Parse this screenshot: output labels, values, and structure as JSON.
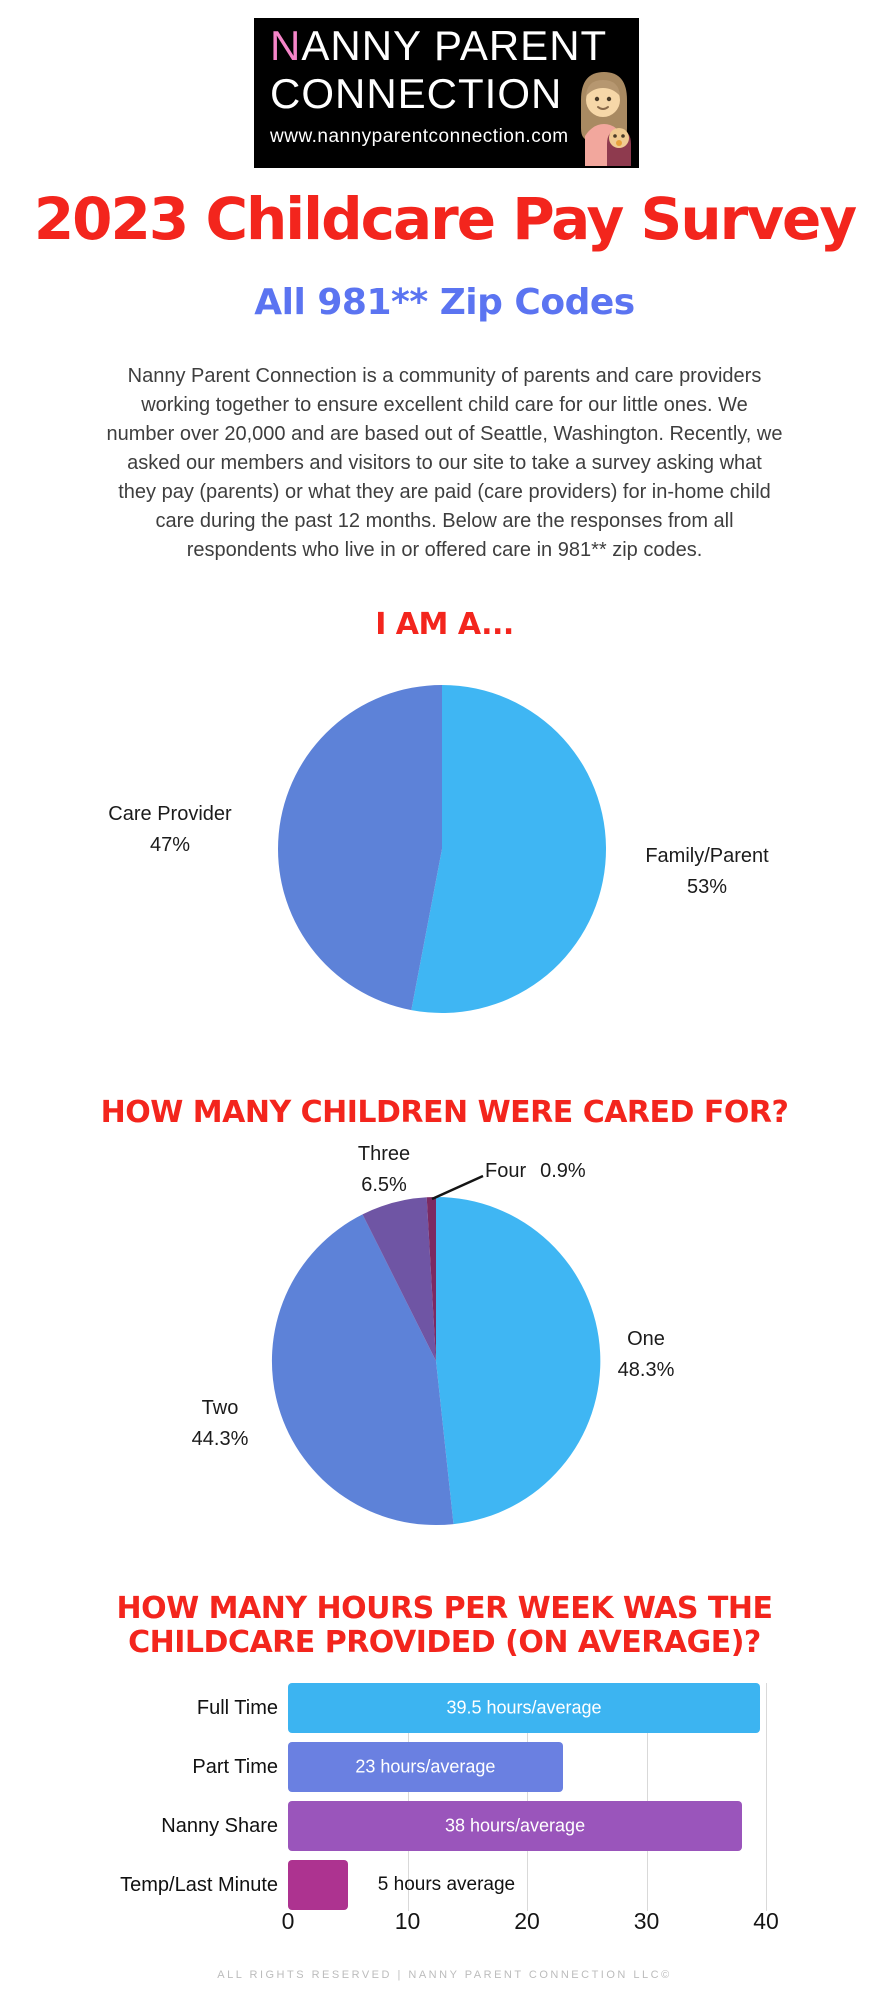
{
  "page": {
    "background": "#ffffff",
    "footer": "ALL RIGHTS RESERVED | NANNY PARENT CONNECTION LLC©"
  },
  "logo": {
    "line1_first_letter": "N",
    "line1_rest": "ANNY PARENT",
    "line2": "CONNECTION",
    "url": "www.nannyparentconnection.com",
    "bg_color": "#000000",
    "pink_accent": "#f585c8",
    "icon": "nanny-holding-baby-icon"
  },
  "header": {
    "title": "2023 Childcare Pay Survey",
    "title_color": "#f3251d",
    "subtitle": "All 981** Zip Codes",
    "subtitle_color": "#5b74f1"
  },
  "intro": {
    "text": "Nanny Parent Connection is a community of parents and care providers\nworking together to ensure excellent child care for our little ones. We\nnumber over 20,000 and are based out of Seattle, Washington. Recently, we\nasked our members and visitors to our site to take a survey asking what\nthey pay (parents) or what they are paid (care providers) for in-home child\ncare during the past 12 months. Below are the responses from all\nrespondents who live in or offered care in 981** zip codes."
  },
  "chart_data": [
    {
      "type": "pie",
      "title": "I AM A...",
      "start_angle": "12-oclock",
      "direction": "clockwise",
      "slices": [
        {
          "label": "Family/Parent",
          "pct_label": "53%",
          "value": 53,
          "color": "#3fb6f3"
        },
        {
          "label": "Care Provider",
          "pct_label": "47%",
          "value": 47,
          "color": "#5d82d8"
        }
      ]
    },
    {
      "type": "pie",
      "title": "HOW MANY CHILDREN WERE CARED FOR?",
      "start_angle": "12-oclock",
      "direction": "clockwise",
      "slices": [
        {
          "label": "One",
          "pct_label": "48.3%",
          "value": 48.3,
          "color": "#3fb6f3"
        },
        {
          "label": "Two",
          "pct_label": "44.3%",
          "value": 44.3,
          "color": "#5d82d8"
        },
        {
          "label": "Three",
          "pct_label": "6.5%",
          "value": 6.5,
          "color": "#6f55a4"
        },
        {
          "label": "Four",
          "pct_label": "0.9%",
          "value": 0.9,
          "color": "#7c2a62"
        }
      ]
    },
    {
      "type": "bar",
      "title": "HOW MANY HOURS PER WEEK WAS THE\nCHILDCARE PROVIDED (ON AVERAGE)?",
      "orientation": "horizontal",
      "categories": [
        "Full Time",
        "Part Time",
        "Nanny Share",
        "Temp/Last Minute"
      ],
      "values": [
        39.5,
        23,
        38,
        5
      ],
      "bar_labels": [
        "39.5 hours/average",
        "23 hours/average",
        "38 hours/average",
        "5 hours average"
      ],
      "bar_label_positions": [
        "inside",
        "inside",
        "inside",
        "outside"
      ],
      "bar_colors": [
        "#3cb4f1",
        "#6a80e1",
        "#9a55bb",
        "#ad3390"
      ],
      "x_ticks": [
        0,
        10,
        20,
        30,
        40
      ],
      "xlim": [
        0,
        40
      ],
      "grid": true,
      "gridline_color": "#d9d9d9"
    }
  ]
}
